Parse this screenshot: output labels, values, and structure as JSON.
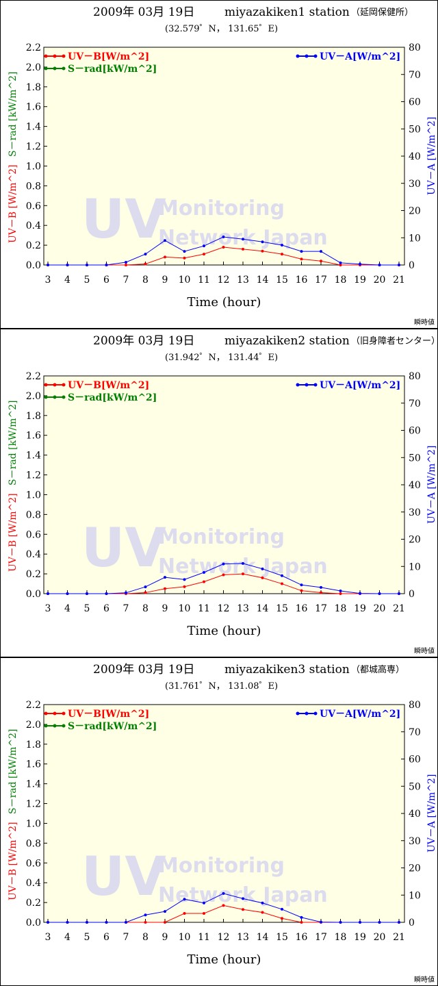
{
  "colors": {
    "uvb": "#ff0000",
    "srad": "#008000",
    "uva": "#0000ff",
    "plot_bg": "#ffffe6",
    "watermark": "#dcdcee"
  },
  "chart_data": [
    {
      "type": "line",
      "title_date": "2009年 03月 19日",
      "station": "miyazakiken1 station",
      "station_jp": "（延岡保健所）",
      "coords": "(32.579゜N， 131.65゜E)",
      "xlabel": "Time (hour)",
      "ylabel_left_uvb": "UV－B [W/m^2]",
      "ylabel_left_srad": "S－rad [kW/m^2]",
      "ylabel_right": "UV－A [W/m^2]",
      "corner_label": "瞬時値",
      "watermark": {
        "big": "UV",
        "line1": "Monitoring",
        "line2": "Network Japan"
      },
      "legend": {
        "uvb": "UV－B[W/m^2]",
        "srad": "S－rad[kW/m^2]",
        "uva": "UV－A[W/m^2]"
      },
      "x": [
        3,
        4,
        5,
        6,
        7,
        8,
        9,
        10,
        11,
        12,
        13,
        14,
        15,
        16,
        17,
        18,
        19,
        20,
        21
      ],
      "ylim_left": [
        0,
        2.2
      ],
      "ylim_right": [
        0,
        80
      ],
      "yticks_left": [
        "0.0",
        "0.2",
        "0.4",
        "0.6",
        "0.8",
        "1.0",
        "1.2",
        "1.4",
        "1.6",
        "1.8",
        "2.0",
        "2.2"
      ],
      "yticks_right": [
        "0",
        "10",
        "20",
        "30",
        "40",
        "50",
        "60",
        "70",
        "80"
      ],
      "series": [
        {
          "name": "UV－B[W/m^2]",
          "axis": "left",
          "color": "#ff0000",
          "values": [
            0,
            0,
            0,
            0,
            0,
            0.01,
            0.08,
            0.07,
            0.11,
            0.18,
            0.16,
            0.14,
            0.11,
            0.06,
            0.04,
            0,
            0,
            0,
            0
          ]
        },
        {
          "name": "UV－A[W/m^2]",
          "axis": "right",
          "color": "#0000ff",
          "values": [
            0,
            0,
            0,
            0,
            1,
            4,
            9,
            5,
            7,
            10.3,
            9.5,
            8.5,
            7.3,
            5,
            5,
            0.8,
            0.3,
            0,
            0
          ]
        }
      ]
    },
    {
      "type": "line",
      "title_date": "2009年 03月 19日",
      "station": "miyazakiken2 station",
      "station_jp": "（旧身障者センター）",
      "coords": "(31.942゜N， 131.44゜E)",
      "xlabel": "Time (hour)",
      "ylabel_left_uvb": "UV－B [W/m^2]",
      "ylabel_left_srad": "S－rad [kW/m^2]",
      "ylabel_right": "UV－A [W/m^2]",
      "corner_label": "瞬時値",
      "watermark": {
        "big": "UV",
        "line1": "Monitoring",
        "line2": "Network Japan"
      },
      "legend": {
        "uvb": "UV－B[W/m^2]",
        "srad": "S－rad[kW/m^2]",
        "uva": "UV－A[W/m^2]"
      },
      "x": [
        3,
        4,
        5,
        6,
        7,
        8,
        9,
        10,
        11,
        12,
        13,
        14,
        15,
        16,
        17,
        18,
        19,
        20,
        21
      ],
      "ylim_left": [
        0,
        2.2
      ],
      "ylim_right": [
        0,
        80
      ],
      "yticks_left": [
        "0.0",
        "0.2",
        "0.4",
        "0.6",
        "0.8",
        "1.0",
        "1.2",
        "1.4",
        "1.6",
        "1.8",
        "2.0",
        "2.2"
      ],
      "yticks_right": [
        "0",
        "10",
        "20",
        "30",
        "40",
        "50",
        "60",
        "70",
        "80"
      ],
      "series": [
        {
          "name": "UV－B[W/m^2]",
          "axis": "left",
          "color": "#ff0000",
          "values": [
            0,
            0,
            0,
            0,
            0,
            0.01,
            0.05,
            0.07,
            0.12,
            0.19,
            0.2,
            0.16,
            0.1,
            0.03,
            0.01,
            0,
            0,
            0,
            0
          ]
        },
        {
          "name": "UV－A[W/m^2]",
          "axis": "right",
          "color": "#0000ff",
          "values": [
            0,
            0,
            0,
            0,
            0.3,
            2.5,
            6,
            5.2,
            7.8,
            10.9,
            11.1,
            9.1,
            6.6,
            3.2,
            2.3,
            1,
            0.1,
            0,
            0
          ]
        }
      ]
    },
    {
      "type": "line",
      "title_date": "2009年 03月 19日",
      "station": "miyazakiken3 station",
      "station_jp": "（都城高専）",
      "coords": "(31.761゜N， 131.08゜E)",
      "xlabel": "Time (hour)",
      "ylabel_left_uvb": "UV－B [W/m^2]",
      "ylabel_left_srad": "S－rad [kW/m^2]",
      "ylabel_right": "UV－A [W/m^2]",
      "corner_label": "瞬時値",
      "watermark": {
        "big": "UV",
        "line1": "Monitoring",
        "line2": "Network Japan"
      },
      "legend": {
        "uvb": "UV－B[W/m^2]",
        "srad": "S－rad[kW/m^2]",
        "uva": "UV－A[W/m^2]"
      },
      "x": [
        3,
        4,
        5,
        6,
        7,
        8,
        9,
        10,
        11,
        12,
        13,
        14,
        15,
        16,
        17,
        18,
        19,
        20,
        21
      ],
      "ylim_left": [
        0,
        2.2
      ],
      "ylim_right": [
        0,
        80
      ],
      "yticks_left": [
        "0.0",
        "0.2",
        "0.4",
        "0.6",
        "0.8",
        "1.0",
        "1.2",
        "1.4",
        "1.6",
        "1.8",
        "2.0",
        "2.2"
      ],
      "yticks_right": [
        "0",
        "10",
        "20",
        "30",
        "40",
        "50",
        "60",
        "70",
        "80"
      ],
      "series": [
        {
          "name": "UV－B[W/m^2]",
          "axis": "left",
          "color": "#ff0000",
          "values": [
            0,
            0,
            0,
            0,
            0,
            0,
            0,
            0.09,
            0.09,
            0.17,
            0.13,
            0.1,
            0.04,
            0,
            0,
            0,
            0,
            0,
            0
          ]
        },
        {
          "name": "UV－A[W/m^2]",
          "axis": "right",
          "color": "#0000ff",
          "values": [
            0,
            0,
            0,
            0,
            0,
            2.7,
            4,
            8.5,
            7.1,
            10.6,
            8.7,
            7.1,
            4.8,
            1.8,
            0.1,
            0,
            0,
            0,
            0
          ]
        }
      ]
    }
  ]
}
